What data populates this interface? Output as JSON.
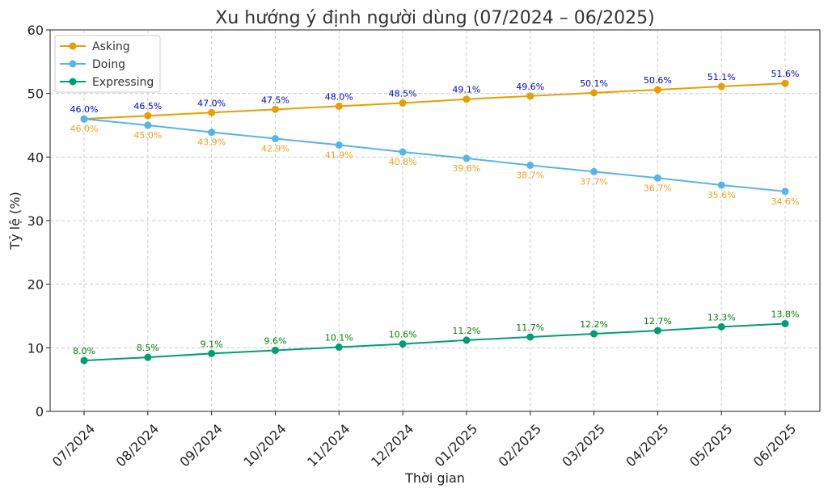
{
  "chart_data": {
    "type": "line",
    "title": "Xu hướng ý định người dùng (07/2024 – 06/2025)",
    "xlabel": "Thời gian",
    "ylabel": "Tỷ lệ (%)",
    "ylim": [
      0,
      60
    ],
    "yticks": [
      0,
      10,
      20,
      30,
      40,
      50,
      60
    ],
    "grid": true,
    "legend_position": "top-left",
    "categories": [
      "07/2024",
      "08/2024",
      "09/2024",
      "10/2024",
      "11/2024",
      "12/2024",
      "01/2025",
      "02/2025",
      "03/2025",
      "04/2025",
      "05/2025",
      "06/2025"
    ],
    "series": [
      {
        "name": "Asking",
        "color": "#e69f00",
        "label_color": "#0000dd",
        "label_position": "above",
        "values": [
          46.0,
          46.5,
          47.0,
          47.5,
          48.0,
          48.5,
          49.1,
          49.6,
          50.1,
          50.6,
          51.1,
          51.6
        ],
        "labels": [
          "46.0%",
          "46.5%",
          "47.0%",
          "47.5%",
          "48.0%",
          "48.5%",
          "49.1%",
          "49.6%",
          "50.1%",
          "50.6%",
          "51.1%",
          "51.6%"
        ]
      },
      {
        "name": "Doing",
        "color": "#56b4e9",
        "label_color": "#f0a020",
        "label_position": "below",
        "values": [
          46.0,
          45.0,
          43.9,
          42.9,
          41.9,
          40.8,
          39.8,
          38.7,
          37.7,
          36.7,
          35.6,
          34.6
        ],
        "labels": [
          "46.0%",
          "45.0%",
          "43.9%",
          "42.9%",
          "41.9%",
          "40.8%",
          "39.8%",
          "38.7%",
          "37.7%",
          "36.7%",
          "35.6%",
          "34.6%"
        ]
      },
      {
        "name": "Expressing",
        "color": "#009e73",
        "label_color": "#008000",
        "label_position": "above",
        "values": [
          8.0,
          8.5,
          9.1,
          9.6,
          10.1,
          10.6,
          11.2,
          11.7,
          12.2,
          12.7,
          13.3,
          13.8
        ],
        "labels": [
          "8.0%",
          "8.5%",
          "9.1%",
          "9.6%",
          "10.1%",
          "10.6%",
          "11.2%",
          "11.7%",
          "12.2%",
          "12.7%",
          "13.3%",
          "13.8%"
        ]
      }
    ]
  }
}
